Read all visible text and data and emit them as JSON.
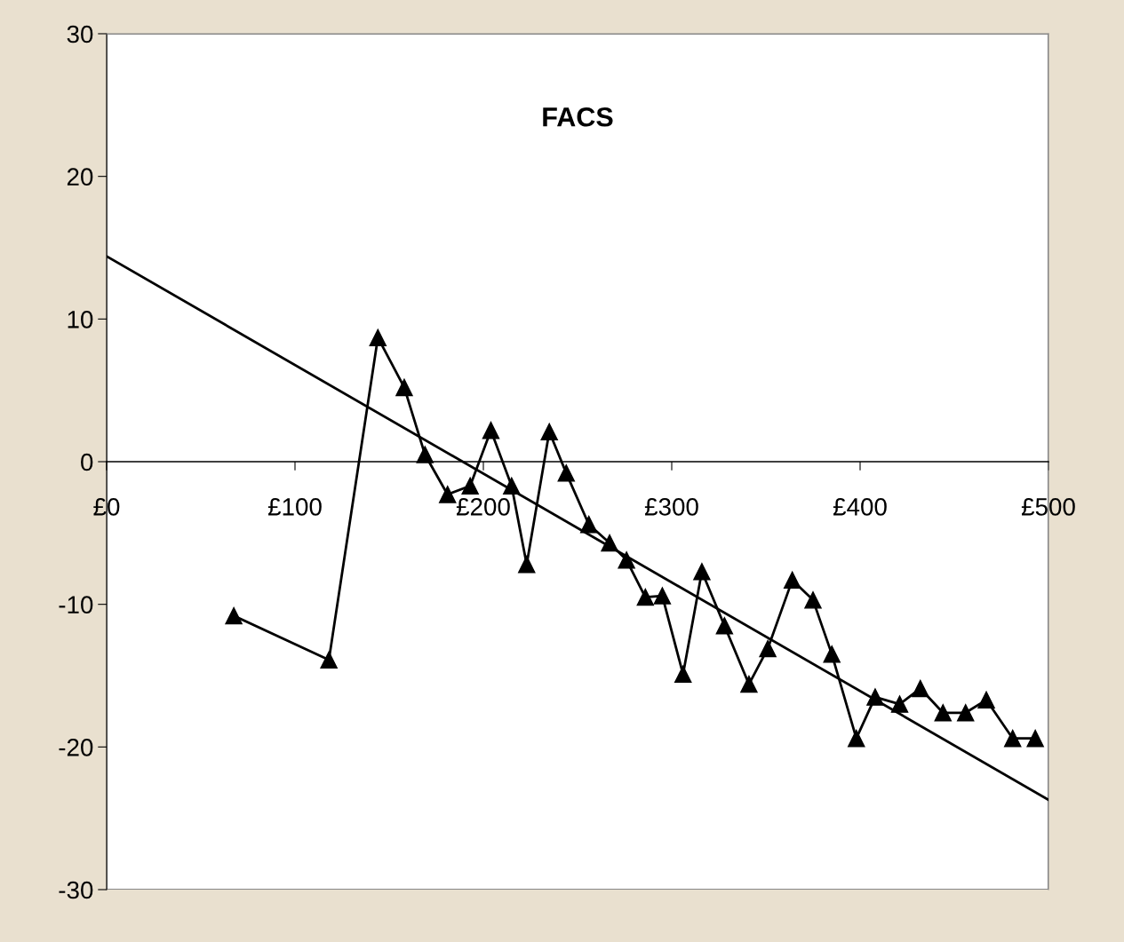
{
  "chart_data": {
    "type": "line",
    "title": "FACS",
    "xlim": [
      0,
      500
    ],
    "xticks": [
      {
        "value": 0,
        "label": "£0"
      },
      {
        "value": 100,
        "label": "£100"
      },
      {
        "value": 200,
        "label": "£200"
      },
      {
        "value": 300,
        "label": "£300"
      },
      {
        "value": 400,
        "label": "£400"
      },
      {
        "value": 500,
        "label": "£500"
      }
    ],
    "ylim": [
      -30,
      30
    ],
    "yticks": [
      -30,
      -20,
      -10,
      0,
      10,
      20,
      30
    ],
    "grid": false,
    "legend": false,
    "marker": "triangle",
    "line_style": "solid",
    "series": [
      {
        "color": "#000000",
        "x": [
          67.5,
          118,
          144,
          158,
          169,
          181,
          193,
          204,
          215,
          223,
          235,
          244,
          256,
          267,
          276,
          286,
          295,
          306,
          316,
          328,
          341,
          351,
          364,
          375,
          385,
          398,
          408,
          421,
          432,
          444,
          456,
          467,
          481,
          493
        ],
        "values": [
          -10.8,
          -13.9,
          8.7,
          5.2,
          0.5,
          -2.3,
          -1.7,
          2.2,
          -1.7,
          -7.2,
          2.1,
          -0.8,
          -4.4,
          -5.7,
          -6.9,
          -9.5,
          -9.4,
          -14.9,
          -7.7,
          -11.5,
          -15.6,
          -13.1,
          -8.3,
          -9.7,
          -13.5,
          -19.4,
          -16.5,
          -17.0,
          -15.9,
          -17.6,
          -17.6,
          -16.7,
          -19.4,
          -19.4
        ]
      },
      {
        "color": "#000000",
        "marker": "none",
        "x": [
          0,
          500
        ],
        "values": [
          14.4,
          -23.7
        ]
      }
    ]
  }
}
